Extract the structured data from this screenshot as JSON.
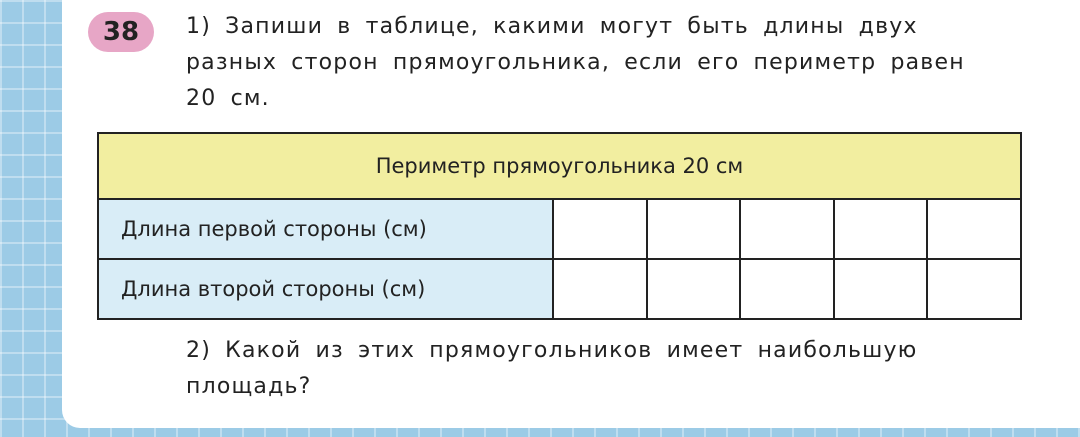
{
  "task": {
    "number": "38",
    "part1": [
      "1) Запиши в таблице, какими могут быть длины двух",
      "разных сторон прямоугольника, если его периметр равен",
      "20 см."
    ],
    "table": {
      "header": "Периметр прямоугольника 20 см",
      "rows": [
        "Длина первой стороны (см)",
        "Длина второй стороны (см)"
      ]
    },
    "part2": [
      "2) Какой из этих прямоугольников имеет наибольшую",
      "площадь?"
    ]
  }
}
